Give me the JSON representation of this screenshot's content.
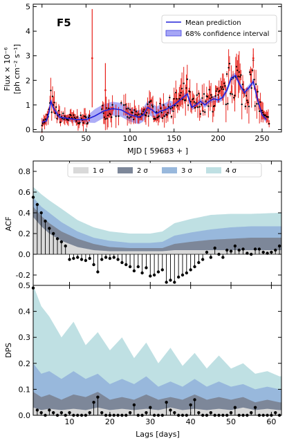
{
  "chart_data": [
    {
      "type": "line",
      "panel_label": "F5",
      "xlabel": "MJD [ 59683 + ]",
      "ylabel_line1": "Flux × 10⁻⁶",
      "ylabel_line2": "[ph cm⁻² s⁻¹]",
      "xlim": [
        -10,
        272
      ],
      "ylim": [
        -0.1,
        5.1
      ],
      "xticks": [
        0,
        50,
        100,
        150,
        200,
        250
      ],
      "yticks": [
        0,
        1,
        2,
        3,
        4,
        5
      ],
      "legend": [
        "Mean prediction",
        "68% confidence interval"
      ],
      "legend_position": "top-right",
      "colors": {
        "data": "#e8201a",
        "points": "#000000",
        "mean": "#2020d8",
        "band": "#6a6af0"
      },
      "mean_curve": {
        "x": [
          0,
          5,
          8,
          10,
          14,
          20,
          30,
          40,
          50,
          60,
          70,
          80,
          90,
          100,
          105,
          110,
          115,
          120,
          125,
          130,
          135,
          140,
          145,
          150,
          155,
          160,
          165,
          170,
          175,
          180,
          185,
          190,
          195,
          200,
          205,
          210,
          215,
          220,
          225,
          230,
          235,
          240,
          245,
          250,
          255
        ],
        "y": [
          0.3,
          0.35,
          0.7,
          1.15,
          0.8,
          0.5,
          0.45,
          0.4,
          0.4,
          0.55,
          0.75,
          0.85,
          0.8,
          0.6,
          0.55,
          0.5,
          0.6,
          0.9,
          0.8,
          0.65,
          0.75,
          0.8,
          0.9,
          1.0,
          1.15,
          1.3,
          1.45,
          0.9,
          1.0,
          1.15,
          1.0,
          1.15,
          1.25,
          1.2,
          1.3,
          1.6,
          2.1,
          2.2,
          1.8,
          1.5,
          1.7,
          1.95,
          1.2,
          0.6,
          0.4
        ]
      },
      "flare_points": [
        {
          "x": 57,
          "y": 2.9,
          "err": 2.0
        },
        {
          "x": 72,
          "y": 1.6,
          "err": 1.1
        },
        {
          "x": 240,
          "y": 2.9,
          "err": 0.4
        }
      ]
    },
    {
      "type": "line",
      "ylabel": "ACF",
      "xlim": [
        1,
        62.5
      ],
      "ylim": [
        -0.3,
        0.9
      ],
      "yticks": [
        -0.2,
        0.0,
        0.2,
        0.4,
        0.6,
        0.8
      ],
      "legend": [
        "1 σ",
        "2 σ",
        "3 σ",
        "4 σ"
      ],
      "legend_position": "top-center",
      "colors": {
        "sigma1": "#d9d9d9",
        "sigma2": "#7d8799",
        "sigma3": "#98b8dc",
        "sigma4": "#bfe0e3"
      },
      "lags": [
        1,
        2,
        3,
        4,
        5,
        6,
        7,
        8,
        9,
        10,
        11,
        12,
        13,
        14,
        15,
        16,
        17,
        18,
        19,
        20,
        21,
        22,
        23,
        24,
        25,
        26,
        27,
        28,
        29,
        30,
        31,
        32,
        33,
        34,
        35,
        36,
        37,
        38,
        39,
        40,
        41,
        42,
        43,
        44,
        45,
        46,
        47,
        48,
        49,
        50,
        51,
        52,
        53,
        54,
        55,
        56,
        57,
        58,
        59,
        60,
        61,
        62
      ],
      "values": [
        0.55,
        0.48,
        0.4,
        0.32,
        0.25,
        0.2,
        0.15,
        0.12,
        0.08,
        -0.05,
        -0.04,
        -0.03,
        -0.05,
        -0.06,
        -0.04,
        -0.1,
        -0.17,
        -0.05,
        -0.03,
        -0.04,
        -0.03,
        -0.05,
        -0.08,
        -0.1,
        -0.12,
        -0.16,
        -0.12,
        -0.18,
        -0.13,
        -0.21,
        -0.2,
        -0.17,
        -0.15,
        -0.27,
        -0.25,
        -0.27,
        -0.22,
        -0.2,
        -0.18,
        -0.15,
        -0.12,
        -0.08,
        -0.05,
        0.02,
        -0.03,
        0.06,
        0.0,
        -0.03,
        0.04,
        0.03,
        0.08,
        0.04,
        0.05,
        0.01,
        0.0,
        0.05,
        0.05,
        0.02,
        0.01,
        0.02,
        0.04,
        0.08
      ],
      "bands": {
        "lags": [
          1,
          3,
          5,
          8,
          12,
          16,
          20,
          25,
          30,
          33,
          36,
          40,
          45,
          50,
          55,
          62
        ],
        "sigma1": [
          0.36,
          0.27,
          0.2,
          0.13,
          0.07,
          0.04,
          0.03,
          0.03,
          0.03,
          0.03,
          0.04,
          0.04,
          0.04,
          0.04,
          0.04,
          0.04
        ],
        "sigma2": [
          0.46,
          0.37,
          0.3,
          0.22,
          0.15,
          0.1,
          0.07,
          0.06,
          0.06,
          0.06,
          0.1,
          0.12,
          0.14,
          0.15,
          0.16,
          0.16
        ],
        "sigma3": [
          0.55,
          0.46,
          0.4,
          0.31,
          0.22,
          0.16,
          0.13,
          0.11,
          0.11,
          0.12,
          0.18,
          0.21,
          0.24,
          0.26,
          0.27,
          0.27
        ],
        "sigma4": [
          0.65,
          0.58,
          0.52,
          0.44,
          0.33,
          0.26,
          0.22,
          0.2,
          0.2,
          0.22,
          0.3,
          0.34,
          0.38,
          0.39,
          0.39,
          0.4
        ]
      }
    },
    {
      "type": "line",
      "ylabel": "DPS",
      "xlabel": "Lags [days]",
      "xlim": [
        1,
        62.5
      ],
      "ylim": [
        0,
        0.5
      ],
      "xticks": [
        10,
        20,
        30,
        40,
        50,
        60
      ],
      "yticks": [
        0.0,
        0.1,
        0.2,
        0.3,
        0.4,
        0.5
      ],
      "lags": [
        1,
        2,
        3,
        4,
        5,
        6,
        7,
        8,
        9,
        10,
        11,
        12,
        13,
        14,
        15,
        16,
        17,
        18,
        19,
        20,
        21,
        22,
        23,
        24,
        25,
        26,
        27,
        28,
        29,
        30,
        31,
        32,
        33,
        34,
        35,
        36,
        37,
        38,
        39,
        40,
        41,
        42,
        43,
        44,
        45,
        46,
        47,
        48,
        49,
        50,
        51,
        52,
        53,
        54,
        55,
        56,
        57,
        58,
        59,
        60,
        61,
        62
      ],
      "values": [
        0.49,
        0.02,
        0.01,
        0.0,
        0.02,
        0.01,
        0.0,
        0.01,
        0.0,
        0.01,
        0.0,
        0.0,
        0.0,
        0.0,
        0.01,
        0.05,
        0.07,
        0.01,
        0.0,
        0.0,
        0.0,
        0.0,
        0.0,
        0.0,
        0.01,
        0.04,
        0.0,
        0.0,
        0.01,
        0.03,
        0.0,
        0.0,
        0.0,
        0.05,
        0.02,
        0.01,
        0.0,
        0.0,
        0.0,
        0.04,
        0.06,
        0.01,
        0.0,
        0.0,
        0.01,
        0.0,
        0.0,
        0.0,
        0.0,
        0.01,
        0.03,
        0.0,
        0.0,
        0.0,
        0.01,
        0.03,
        0.0,
        0.0,
        0.0,
        0.0,
        0.01,
        0.0
      ],
      "bands": {
        "lags": [
          1,
          3,
          5,
          8,
          11,
          14,
          17,
          20,
          23,
          26,
          29,
          32,
          35,
          38,
          41,
          44,
          47,
          50,
          53,
          56,
          59,
          62
        ],
        "sigma1": [
          0.03,
          0.02,
          0.025,
          0.02,
          0.025,
          0.02,
          0.03,
          0.02,
          0.025,
          0.02,
          0.025,
          0.02,
          0.03,
          0.02,
          0.025,
          0.02,
          0.025,
          0.02,
          0.03,
          0.02,
          0.025,
          0.02
        ],
        "sigma2": [
          0.09,
          0.07,
          0.08,
          0.06,
          0.08,
          0.07,
          0.09,
          0.06,
          0.07,
          0.06,
          0.08,
          0.06,
          0.07,
          0.06,
          0.08,
          0.06,
          0.07,
          0.06,
          0.07,
          0.05,
          0.06,
          0.05
        ],
        "sigma3": [
          0.2,
          0.16,
          0.17,
          0.14,
          0.17,
          0.14,
          0.16,
          0.12,
          0.14,
          0.12,
          0.15,
          0.11,
          0.13,
          0.11,
          0.14,
          0.11,
          0.13,
          0.11,
          0.12,
          0.1,
          0.11,
          0.1
        ],
        "sigma4": [
          0.5,
          0.42,
          0.38,
          0.3,
          0.36,
          0.27,
          0.32,
          0.25,
          0.3,
          0.22,
          0.28,
          0.2,
          0.26,
          0.19,
          0.24,
          0.18,
          0.23,
          0.18,
          0.2,
          0.16,
          0.17,
          0.15
        ]
      }
    }
  ]
}
